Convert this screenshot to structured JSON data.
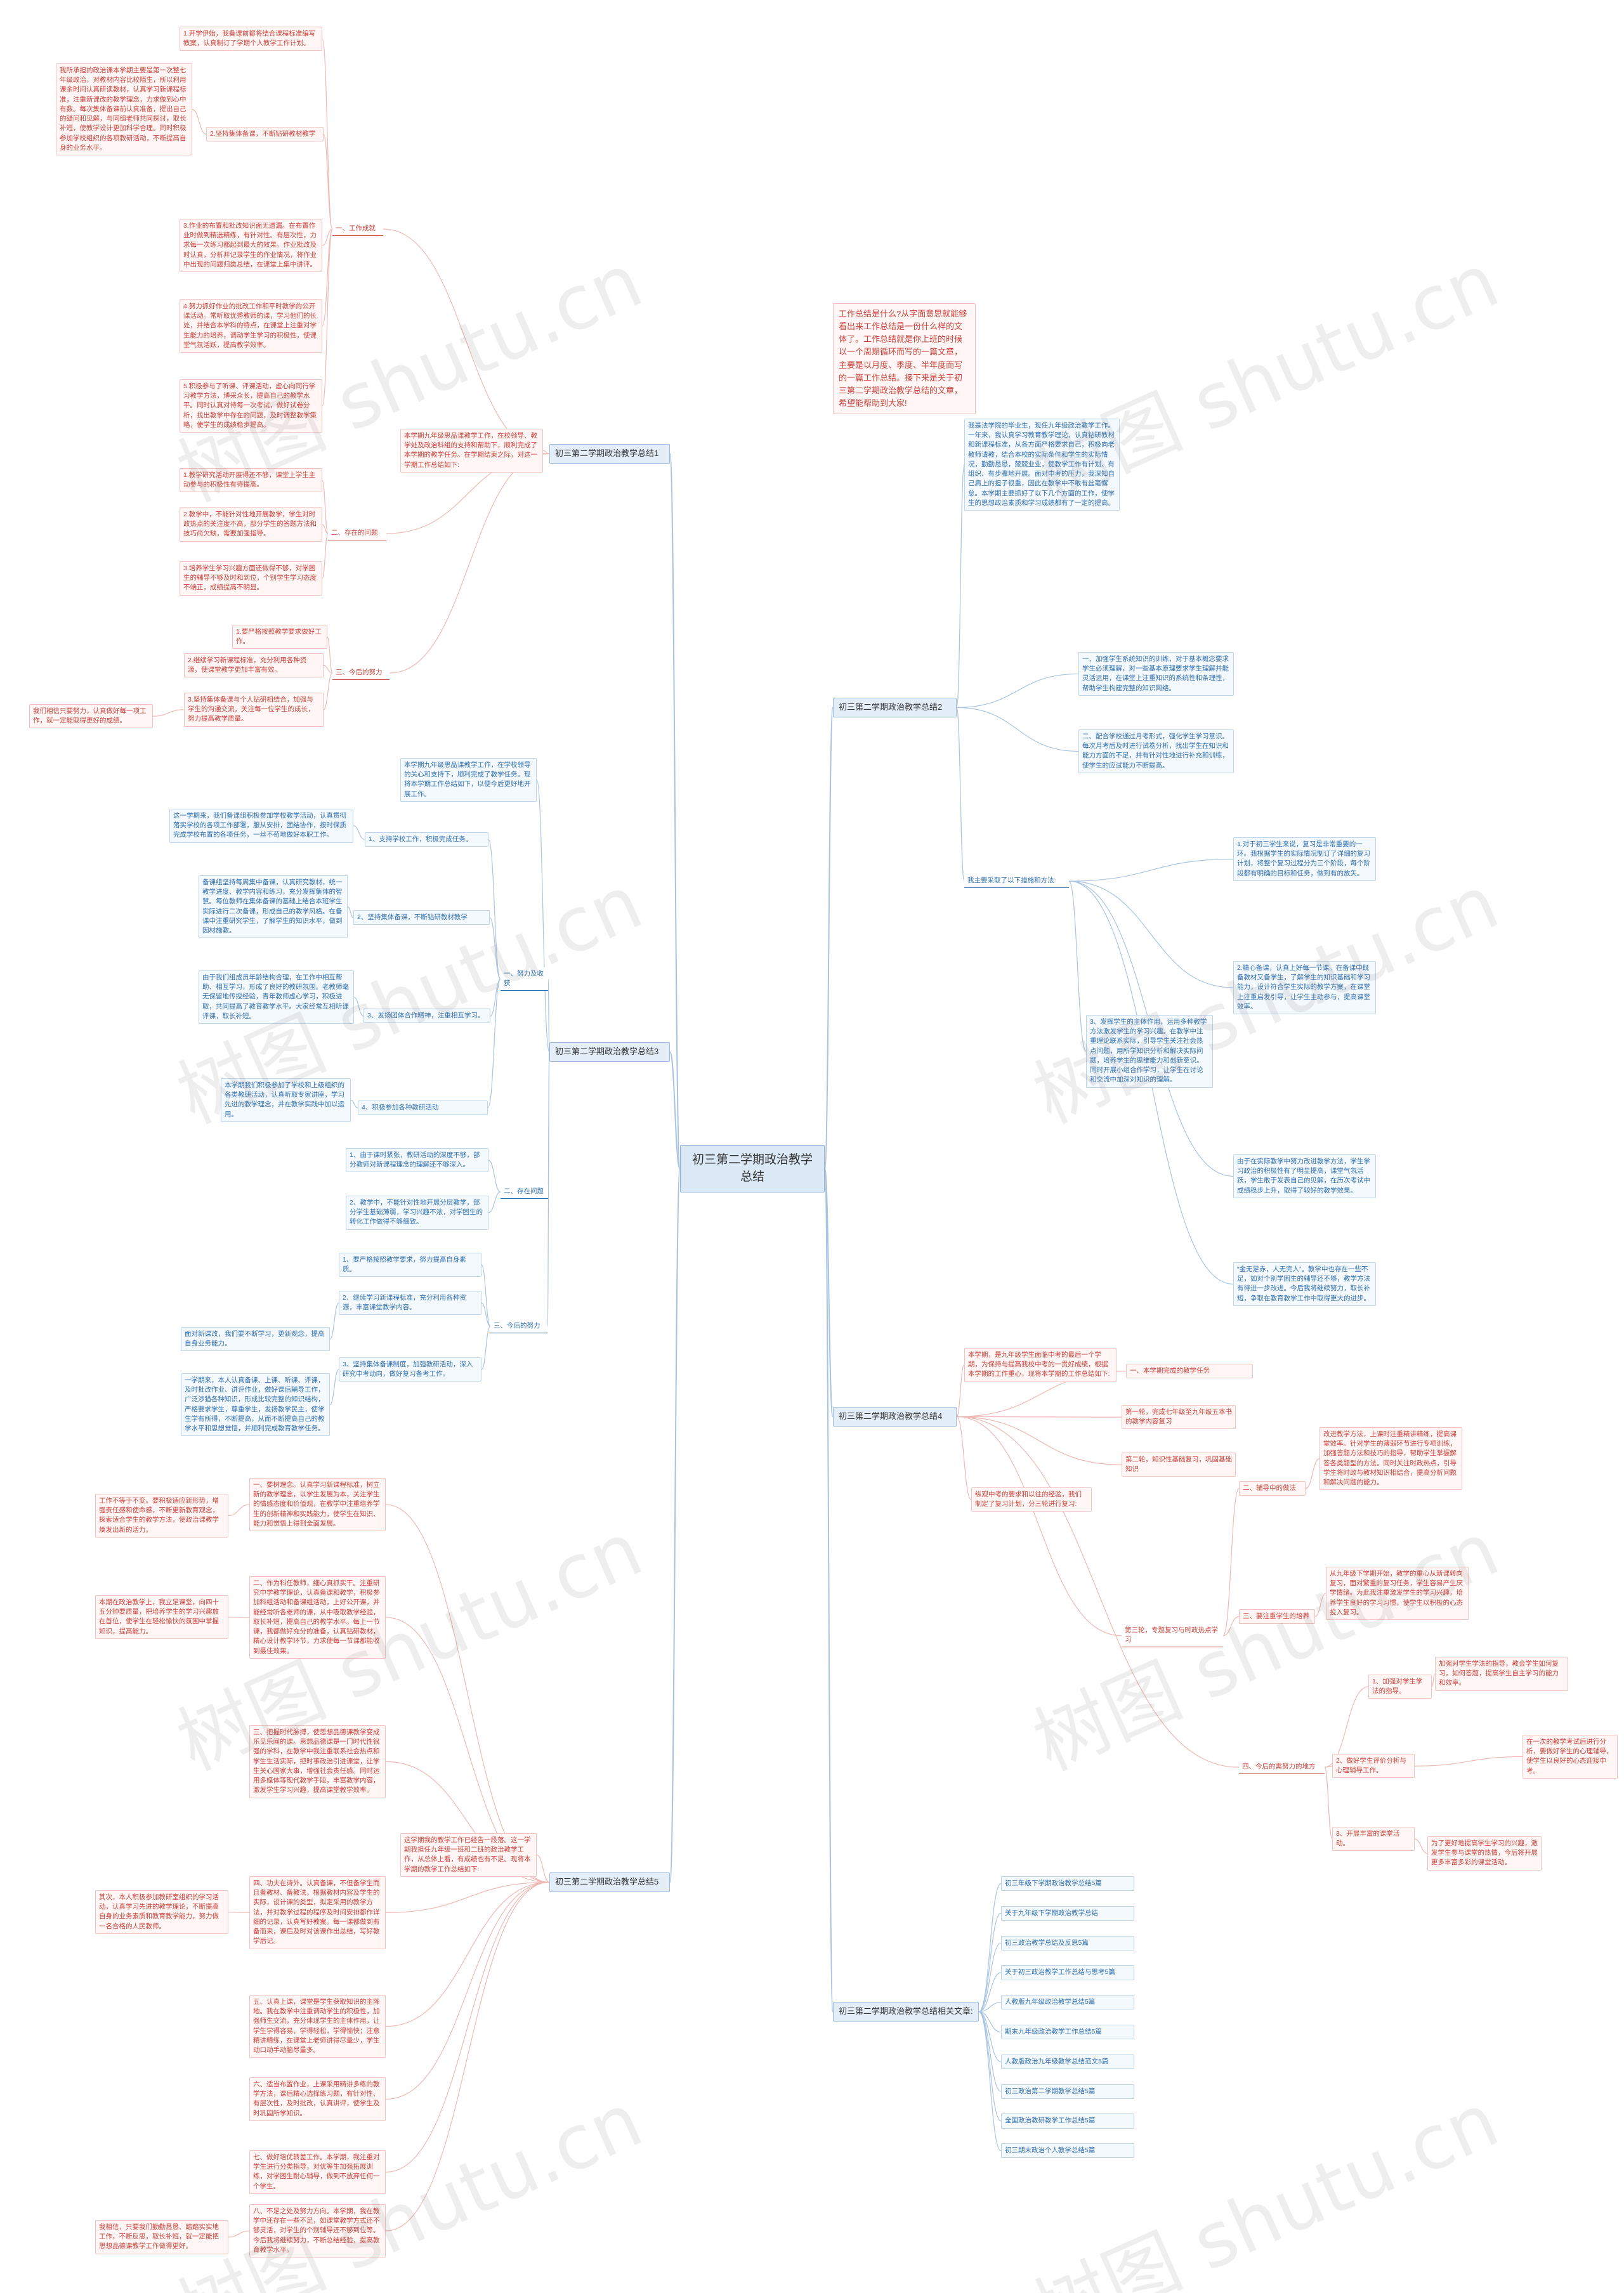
{
  "title": "初三第二学期政治教学总结",
  "intro": "工作总结是什么?从字面意思就能够看出来工作总结是一份什么样的文体了。工作总结就是你上班的时候以一个周期循环而写的一篇文章，主要是以月度、季度、半年度而写的一篇工作总结。接下来是关于初三第二学期政治教学总结的文章，希望能帮助到大家!",
  "watermark": "树图 shutu.cn",
  "branches": [
    {
      "label": "初三第二学期政治教学总结1",
      "note": "本学期九年级思品课教学工作，在校领导、教学处及政治科组的支持和帮助下，顺利完成了本学期的教学任务。在学期结束之际，对这一学期工作总结如下:",
      "sections": [
        {
          "label": "一、工作成就",
          "items": [
            {
              "text": "1.开学伊始，我备课前都将结合课程标准编写教案，认真制订了学期个人教学工作计划。"
            },
            {
              "text": "2.坚持集体备课，不断钻研教材教学",
              "note": "我所承担的政治课本学期主要是第一次整七年级政治，对教材内容比较陌生，所以利用课余时间认真研读教材，认真学习新课程标准，注重新课改的教学理念，力求做到心中有数。每次集体备课前认真准备，提出自己的疑问和见解，与同组老师共同探讨，取长补短，使教学设计更加科学合理。同时积极参加学校组织的各项教研活动，不断提高自身的业务水平。"
            },
            {
              "text": "3.作业的布置和批改知识面无遗漏。在布置作业时做到精选精练，有针对性、有层次性，力求每一次练习都起到最大的效果。作业批改及时认真，分析并记录学生的作业情况，将作业中出现的问题归类总结，在课堂上集中讲评。"
            },
            {
              "text": "4.努力抓好作业的批改工作和平时教学的公开课活动。常听取优秀教师的课，学习他们的长处，并结合本学科的特点，在课堂上注重对学生能力的培养，调动学生学习的积极性，使课堂气氛活跃，提高教学效率。"
            },
            {
              "text": "5.积极参与了听课、评课活动，虚心向同行学习教学方法，博采众长，提高自己的教学水平。同时认真对待每一次考试，做好试卷分析，找出教学中存在的问题，及时调整教学策略，使学生的成绩稳步提高。"
            }
          ]
        },
        {
          "label": "二、存在的问题",
          "items": [
            {
              "text": "1.教学研究活动开展得还不够，课堂上学生主动参与的积极性有待提高。"
            },
            {
              "text": "2.教学中，不能针对性地开展教学，学生对时政热点的关注度不高，部分学生的答题方法和技巧尚欠缺，需要加强指导。"
            },
            {
              "text": "3.培养学生学习兴趣方面还做得不够，对学困生的辅导不够及时和到位，个别学生学习态度不端正，成绩提高不明显。"
            }
          ]
        },
        {
          "label": "三、今后的努力",
          "items": [
            {
              "text": "1.要严格按照教学要求做好工作。"
            },
            {
              "text": "2.继续学习新课程标准，充分利用各种资源，使课堂教学更加丰富有效。"
            },
            {
              "text": "3.坚持集体备课与个人钻研相结合，加强与学生的沟通交流，关注每一位学生的成长，努力提高教学质量。",
              "note": "我们相信只要努力，认真做好每一项工作，就一定能取得更好的成绩。"
            }
          ]
        }
      ]
    },
    {
      "label": "初三第二学期政治教学总结2",
      "note": "我是法学院的毕业生，现任九年级政治教学工作。一年来，我认真学习教育教学理论，认真钻研教材和新课程标准，从各方面严格要求自己，积极向老教师请教，结合本校的实际条件和学生的实际情况，勤勤恳恳，兢兢业业，使教学工作有计划、有组织、有步骤地开展。面对中考的压力，我深知自己肩上的担子很重，因此在教学中不敢有丝毫懈怠。本学期主要抓好了以下几个方面的工作，使学生的思想政治素质和学习成绩都有了一定的提高。",
      "sections": [
        {
          "label": "一、加强学生系统知识的训练，对于基本概念要求学生必须理解，对一些基本原理要求学生理解并能灵活运用，在课堂上注重知识的系统性和条理性，帮助学生构建完整的知识网络。"
        },
        {
          "label": "二、配合学校通过月考形式，强化学生学习意识。每次月考后及时进行试卷分析，找出学生在知识和能力方面的不足，并有针对性地进行补充和训练，使学生的应试能力不断提高。"
        },
        {
          "label": "我主要采取了以下措施和方法:",
          "items": [
            {
              "text": "1.对于初三学生来说，复习是非常重要的一环。我根据学生的实际情况制订了详细的复习计划，将整个复习过程分为三个阶段，每个阶段都有明确的目标和任务，做到有的放矢。"
            },
            {
              "text": "2.精心备课，认真上好每一节课。在备课中既备教材又备学生，了解学生的知识基础和学习能力，设计符合学生实际的教学方案，在课堂上注重启发引导，让学生主动参与，提高课堂效率。"
            },
            {
              "text": "3、发挥学生的主体作用，运用多种教学方法激发学生的学习兴趣。在教学中注重理论联系实际，引导学生关注社会热点问题，用所学知识分析和解决实际问题，培养学生的思维能力和创新意识。同时开展小组合作学习，让学生在讨论和交流中加深对知识的理解。"
            },
            {
              "text": "由于在实际教学中努力改进教学方法，学生学习政治的积极性有了明显提高，课堂气氛活跃，学生敢于发表自己的见解，在历次考试中成绩稳步上升，取得了较好的教学效果。"
            },
            {
              "text": "“金无足赤，人无完人”。教学中也存在一些不足，如对个别学困生的辅导还不够，教学方法有待进一步改进。今后我将继续努力，取长补短，争取在教育教学工作中取得更大的进步。"
            }
          ]
        }
      ]
    },
    {
      "label": "初三第二学期政治教学总结3",
      "note": "本学期九年级思品课教学工作，在学校领导的关心和支持下，顺利完成了教学任务。现将本学期工作总结如下，以便今后更好地开展工作。",
      "sections": [
        {
          "label": "一、努力及收获",
          "items": [
            {
              "text": "1、支持学校工作，积极完成任务。",
              "note": "这一学期来，我们备课组积极参加学校教学活动，认真贯彻落实学校的各项工作部署，服从安排，团结协作，按时保质完成学校布置的各项任务，一丝不苟地做好本职工作。"
            },
            {
              "text": "2、坚持集体备课，不断钻研教材教学",
              "note": "备课组坚持每周集中备课，认真研究教材，统一教学进度、教学内容和练习，充分发挥集体的智慧。每位教师在集体备课的基础上结合本班学生实际进行二次备课，形成自己的教学风格。在备课中注重研究学生，了解学生的知识水平，做到因材施教。"
            },
            {
              "text": "3、发扬团体合作精神，注重相互学习。",
              "note": "由于我们组成员年龄结构合理，在工作中相互帮助、相互学习，形成了良好的教研氛围。老教师毫无保留地传授经验，青年教师虚心学习，积极进取，共同提高了教育教学水平。大家经常互相听课评课，取长补短。"
            },
            {
              "text": "4、积极参加各种教研活动",
              "note": "本学期我们积极参加了学校和上级组织的各类教研活动，认真听取专家讲座，学习先进的教学理念，并在教学实践中加以运用。"
            }
          ]
        },
        {
          "label": "二、存在问题",
          "items": [
            {
              "text": "1、由于课时紧张，教研活动的深度不够，部分教师对新课程理念的理解还不够深入。"
            },
            {
              "text": "2、教学中，不能针对性地开展分层教学，部分学生基础薄弱，学习兴趣不浓，对学困生的转化工作做得不够细致。"
            }
          ]
        },
        {
          "label": "三、今后的努力",
          "items": [
            {
              "text": "1、要严格按照教学要求，努力提高自身素质。"
            },
            {
              "text": "2、继续学习新课程标准，充分利用各种资源，丰富课堂教学内容。",
              "note": "面对新课改，我们要不断学习，更新观念，提高自身业务能力。"
            },
            {
              "text": "3、坚持集体备课制度，加强教研活动，深入研究中考动向，做好复习备考工作。",
              "note": "一学期来，本人认真备课、上课、听课、评课，及时批改作业、讲评作业，做好课后辅导工作，广泛涉猎各种知识，形成比较完整的知识结构，严格要求学生，尊重学生，发扬教学民主，使学生学有所得，不断提高，从而不断提高自己的教学水平和思想觉悟，并顺利完成教育教学任务。"
            }
          ]
        }
      ]
    },
    {
      "label": "初三第二学期政治教学总结4",
      "note": "本学期，是九年级学生面临中考的最后一个学期，为保持与提高我校中考的一贯好成绩，根据本学期的工作重心，现将本学期的工作总结如下:",
      "sections": [
        {
          "label": "一、本学期完成的教学任务"
        },
        {
          "label": "第一轮，完成七年级至九年级五本书的教学内容复习"
        },
        {
          "label": "第二轮，知识性基础复习，巩固基础知识"
        },
        {
          "label": "纵观中考的要求和以往的经验，我们制定了复习计划，分三轮进行复习:"
        },
        {
          "label": "第三轮，专题复习与时政热点学习",
          "items": [
            {
              "text": "二、辅导中的做法",
              "note": "改进教学方法，上课时注重精讲精练，提高课堂效率。针对学生的薄弱环节进行专项训练，加强答题方法和技巧的指导，帮助学生掌握解答各类题型的方法。同时关注时政热点，引导学生将时政与教材知识相结合，提高分析问题和解决问题的能力。"
            },
            {
              "text": "三、要注重学生的培养",
              "note": "从九年级下学期开始，教学的重心从新课转向复习，面对繁重的复习任务，学生容易产生厌学情绪。为此我注重激发学生的学习兴趣，培养学生良好的学习习惯，使学生以积极的心态投入复习。"
            }
          ]
        },
        {
          "label": "四、今后的需努力的地方",
          "items": [
            {
              "text": "1、加强对学生学法的指导。",
              "note": "加强对学生学法的指导，教会学生如何复习，如何答题，提高学生自主学习的能力和效率。"
            },
            {
              "text": "2、做好学生评价分析与心理辅导工作。",
              "note": "在一次的教学考试后进行分析，要做好学生的心理辅导，使学生以良好的心态迎接中考。"
            },
            {
              "text": "3、开展丰富的课堂活动。",
              "note": "为了更好地提高学生学习的兴趣，激发学生参与课堂的热情，今后将开展更多丰富多彩的课堂活动。"
            }
          ]
        }
      ]
    },
    {
      "label": "初三第二学期政治教学总结5",
      "note": "这学期我的教学工作已经告一段落。这一学期我担任九年级一班和二班的政治教学工作，从总体上看，有成绩也有不足。现将本学期的教学工作总结如下:",
      "sections": [
        {
          "label": "一、要树理念。认真学习新课程标准，树立新的教学理念，以学生发展为本，关注学生的情感态度和价值观，在教学中注重培养学生的创新精神和实践能力，使学生在知识、能力和觉悟上得到全面发展。",
          "note": "工作不等于不变。要积极适应新形势，增强责任感和使命感，不断更新教育观念，探索适合学生的教学方法，使政治课教学焕发出新的活力。"
        },
        {
          "label": "二、作为科任教师，细心真抓实干。注重研究中学教学理论，认真备课和教学，积极参加科组活动和备课组活动，上好公开课，并能经常听各老师的课，从中吸取教学经验，取长补短，提高自己的教学水平。每上一节课，我都做好充分的准备，认真钻研教材，精心设计教学环节，力求使每一节课都能收到最佳效果。",
          "note": "本期在政治教学上，我立足课堂，向四十五分钟要质量，把培养学生的学习兴趣放在首位，使学生在轻松愉快的氛围中掌握知识，提高能力。"
        },
        {
          "label": "三、把握时代脉搏，使思想品德课教学变成乐见乐闻的课。思想品德课是一门时代性很强的学科，在教学中我注重联系社会热点和学生生活实际，把时事政治引进课堂，让学生关心国家大事，增强社会责任感。同时运用多媒体等现代教学手段，丰富教学内容，激发学生学习兴趣，提高课堂教学效率。"
        },
        {
          "label": "四、功夫在诗外。认真备课，不但备学生而且备教材、备教法，根据教材内容及学生的实际，设计课的类型，拟定采用的教学方法，并对教学过程的程序及时间安排都作详细的记录，认真写好教案。每一课都做到有备而来，课后及时对该课作出总结，写好教学后记。",
          "note": "其次，本人积极参加教研室组织的学习活动，认真学习先进的教学理论，不断提高自身的业务素质和教育教学能力，努力做一名合格的人民教师。"
        },
        {
          "label": "五、认真上课，课堂是学生获取知识的主阵地。我在教学中注重调动学生的积极性，加强师生交流，充分体现学生的主体作用，让学生学得容易，学得轻松，学得愉快；注意精讲精练，在课堂上老师讲得尽量少，学生动口动手动脑尽量多。"
        },
        {
          "label": "六、适当布置作业，上课采用精讲多练的教学方法，课后精心选择练习题，有针对性、有层次性，及时批改，认真讲评，使学生及时巩固所学知识。"
        },
        {
          "label": "七、做好培优转差工作。本学期，我注重对学生进行分类指导，对优等生加强拓展训练，对学困生耐心辅导，做到不放弃任何一个学生。"
        },
        {
          "label": "八、不足之处及努力方向。本学期，我在教学中还存在一些不足，如课堂教学方式还不够灵活，对学生的个别辅导还不够到位等。今后我将继续努力，不断总结经验，提高教育教学水平。",
          "note": "我相信，只要我们勤勤恳恳、踏踏实实地工作，不断反思，取长补短，就一定能把思想品德课教学工作做得更好。"
        }
      ]
    },
    {
      "label": "初三第二学期政治教学总结相关文章:",
      "items": [
        "初三年级下学期政治教学总结5篇",
        "关于九年级下学期政治教学总结",
        "初三政治教学总结及反思5篇",
        "关于初三政治教学工作总结与思考5篇",
        "人教版九年级政治教学总结5篇",
        "期末九年级政治教学工作总结5篇",
        "人教版政治九年级教学总结范文5篇",
        "初三政治第二学期教学总结5篇",
        "全国政治教研教学工作总结5篇",
        "初三期末政治个人教学总结5篇"
      ]
    }
  ]
}
